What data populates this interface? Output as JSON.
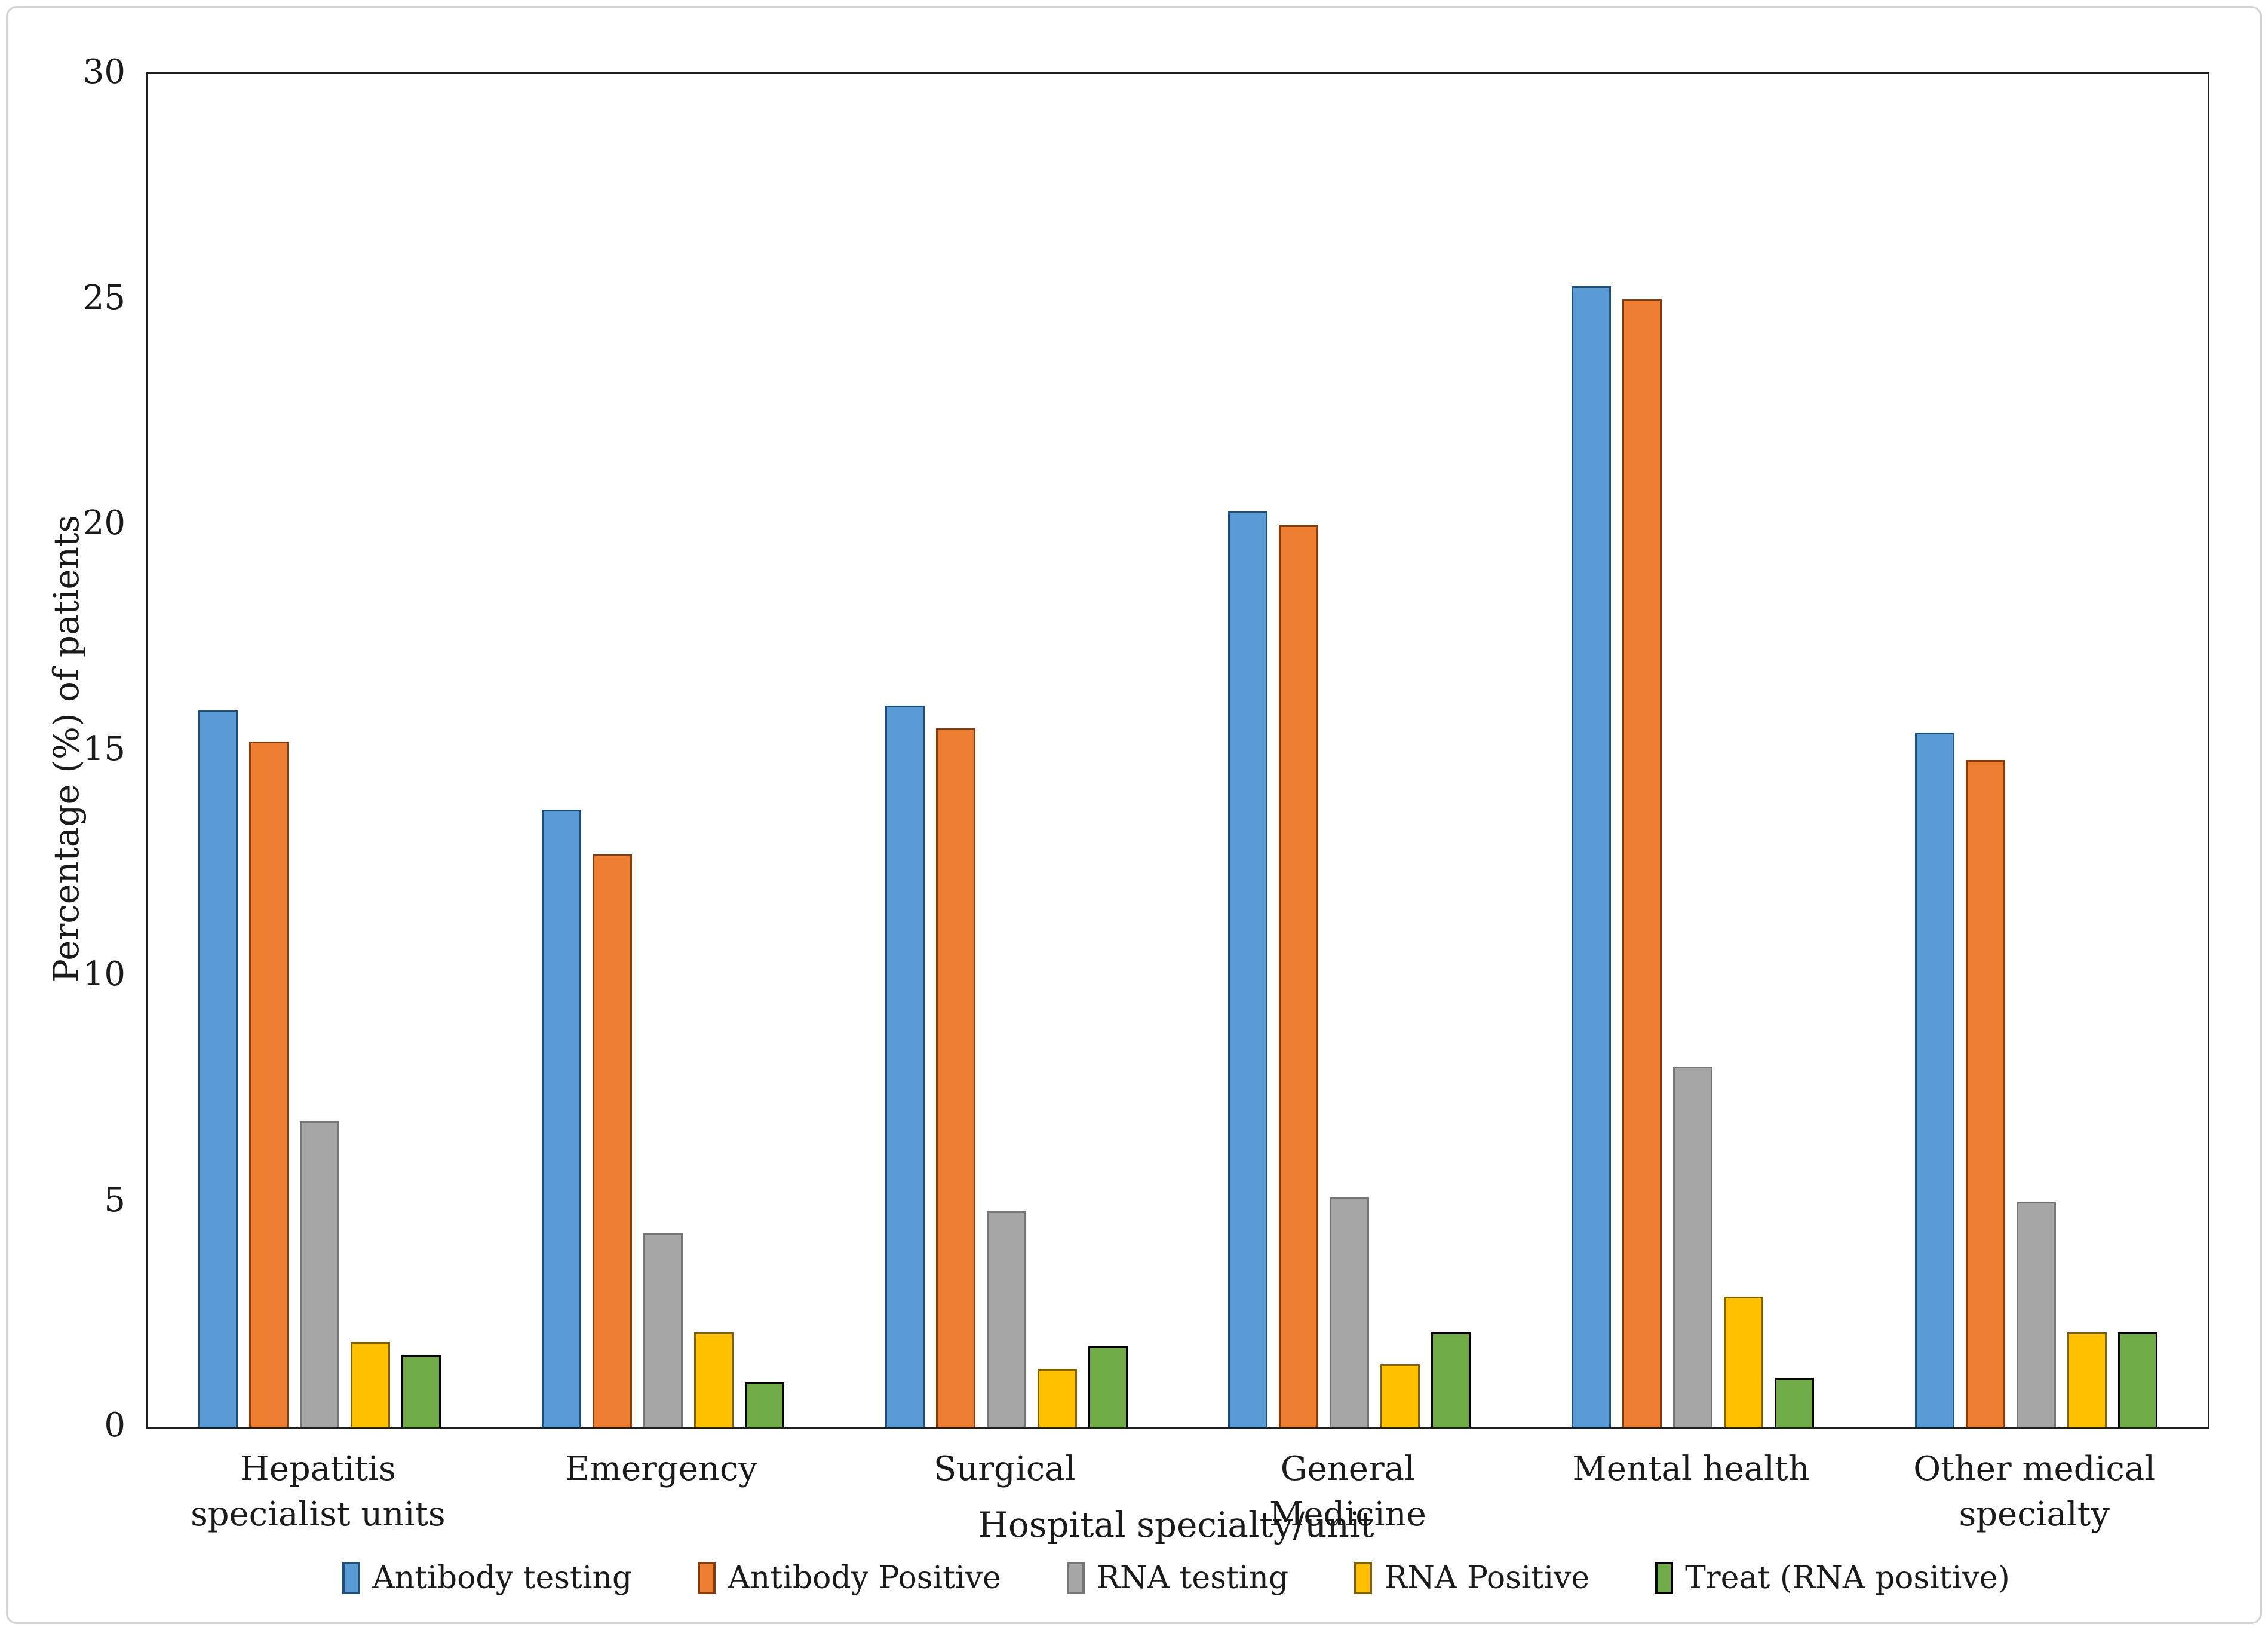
{
  "figure": {
    "background_color": "#ffffff",
    "frame_border_color": "#d2d2d2",
    "axis_line_color": "#1f1f1f"
  },
  "y_axis": {
    "title": "Percentage (%) of patients",
    "min": 0,
    "max": 30,
    "tick_step": 5,
    "tick_labels": [
      "0",
      "5",
      "10",
      "15",
      "20",
      "25",
      "30"
    ]
  },
  "x_axis": {
    "title": "Hospital specialty/unit"
  },
  "chart_data": {
    "type": "bar",
    "title": "",
    "xlabel": "Hospital specialty/unit",
    "ylabel": "Percentage (%) of patients",
    "ylim": [
      0,
      30
    ],
    "grid": false,
    "legend_position": "bottom",
    "categories": [
      "Hepatitis specialist units",
      "Emergency",
      "Surgical",
      "General Medicine",
      "Mental health",
      "Other medical specialty"
    ],
    "series": [
      {
        "name": "Antibody testing",
        "color": "#5B9BD5",
        "border_color": "#1F4E79",
        "values": [
          15.9,
          13.7,
          16.0,
          20.3,
          25.3,
          15.4
        ]
      },
      {
        "name": "Antibody Positive",
        "color": "#ED7D31",
        "border_color": "#843C0C",
        "values": [
          15.2,
          12.7,
          15.5,
          20.0,
          25.0,
          14.8
        ]
      },
      {
        "name": "RNA testing",
        "color": "#A6A6A6",
        "border_color": "#757575",
        "values": [
          6.8,
          4.3,
          4.8,
          5.1,
          8.0,
          5.0
        ]
      },
      {
        "name": "RNA Positive",
        "color": "#FFC000",
        "border_color": "#7F6000",
        "values": [
          1.9,
          2.1,
          1.3,
          1.4,
          2.9,
          2.1
        ]
      },
      {
        "name": "Treat (RNA positive)",
        "color": "#70AD47",
        "border_color": "#000000",
        "values": [
          1.6,
          1.0,
          1.8,
          2.1,
          1.1,
          2.1
        ]
      }
    ]
  }
}
